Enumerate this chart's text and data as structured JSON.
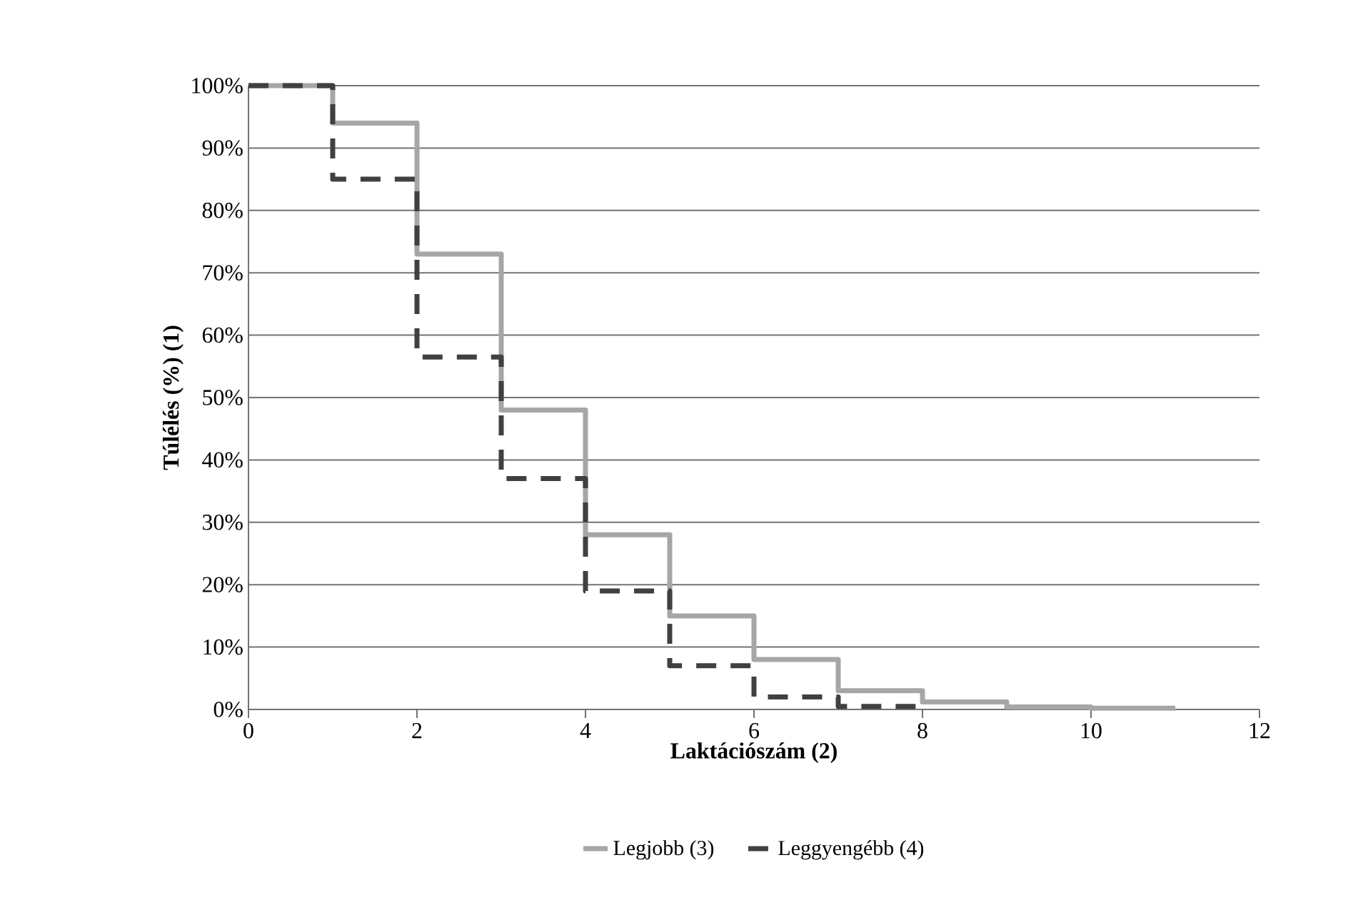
{
  "chart_data": {
    "type": "step",
    "xlabel": "Laktációszám (2)",
    "ylabel": "Túlélés (%) (1)",
    "xlim": [
      0,
      12
    ],
    "xticks": [
      0,
      2,
      4,
      6,
      8,
      10,
      12
    ],
    "ylim": [
      0,
      100
    ],
    "yticks": [
      {
        "value": 0,
        "label": "0%"
      },
      {
        "value": 10,
        "label": "10%"
      },
      {
        "value": 20,
        "label": "20%"
      },
      {
        "value": 30,
        "label": "30%"
      },
      {
        "value": 40,
        "label": "40%"
      },
      {
        "value": 50,
        "label": "50%"
      },
      {
        "value": 60,
        "label": "60%"
      },
      {
        "value": 70,
        "label": "70%"
      },
      {
        "value": 80,
        "label": "80%"
      },
      {
        "value": 90,
        "label": "90%"
      },
      {
        "value": 100,
        "label": "100%"
      }
    ],
    "grid": "y",
    "legend": "bottom",
    "marker": "none",
    "series": [
      {
        "name": "Legjobb (3)",
        "color": "#a6a6a6",
        "line_style": "solid",
        "x": [
          0,
          1,
          2,
          3,
          4,
          5,
          6,
          7,
          8,
          9,
          10,
          11
        ],
        "values": [
          100,
          94,
          73,
          48,
          28,
          15,
          8,
          3,
          1.2,
          0.4,
          0.2,
          0.2
        ]
      },
      {
        "name": "Leggyengébb (4)",
        "color": "#404040",
        "line_style": "dashed",
        "x": [
          0,
          1,
          2,
          3,
          4,
          5,
          6,
          7,
          8
        ],
        "values": [
          100,
          85,
          56.5,
          37,
          19,
          7,
          2,
          0.5,
          0.5
        ]
      }
    ]
  }
}
